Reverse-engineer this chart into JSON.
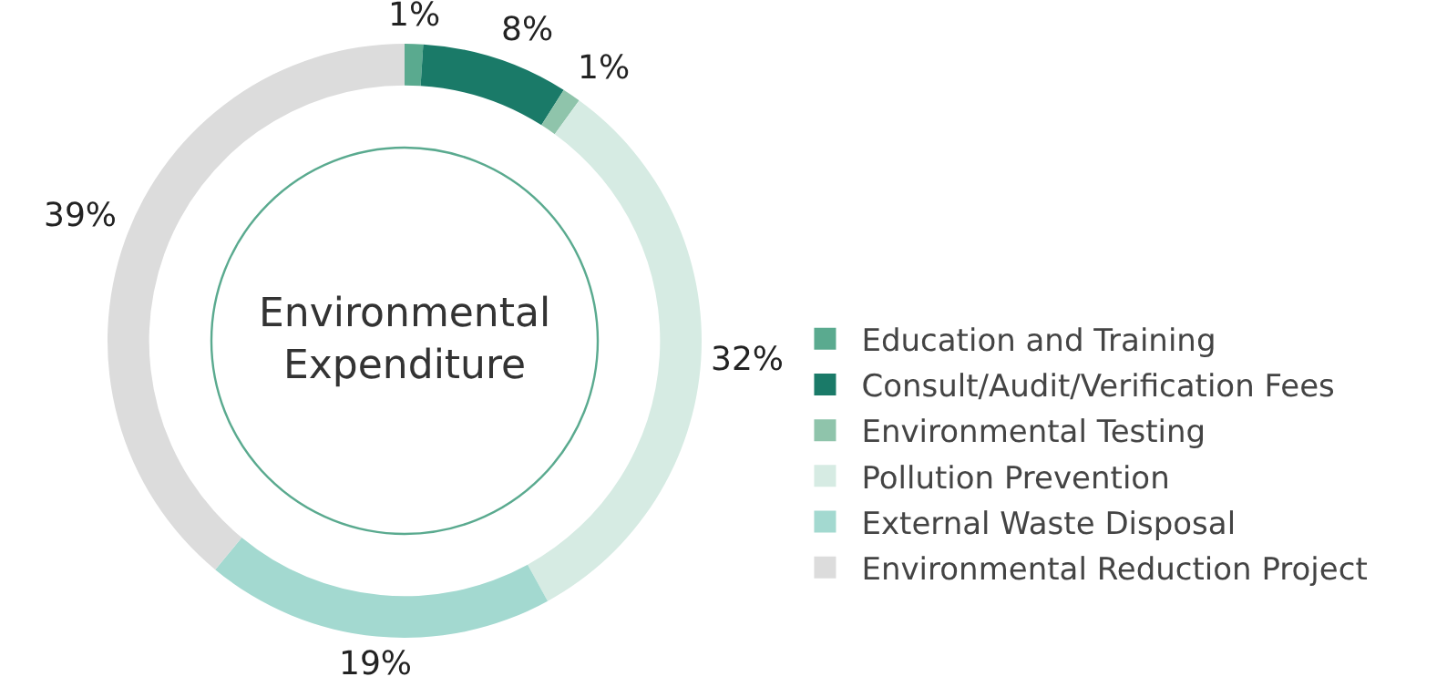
{
  "chart_data": {
    "type": "donut",
    "title": "Environmental Expenditure",
    "categories": [
      "Education and Training",
      "Consult/Audit/Verification Fees",
      "Environmental Testing",
      "Pollution Prevention",
      "External Waste Disposal",
      "Environmental Reduction Project"
    ],
    "values": [
      1,
      8,
      1,
      32,
      19,
      39
    ],
    "colors": [
      "#5aaa8f",
      "#1a7a68",
      "#8fc4ab",
      "#d6ebe3",
      "#a3d9d0",
      "#dcdcdc"
    ],
    "value_labels": [
      "1%",
      "8%",
      "1%",
      "32%",
      "19%",
      "39%"
    ],
    "legend": "right"
  }
}
